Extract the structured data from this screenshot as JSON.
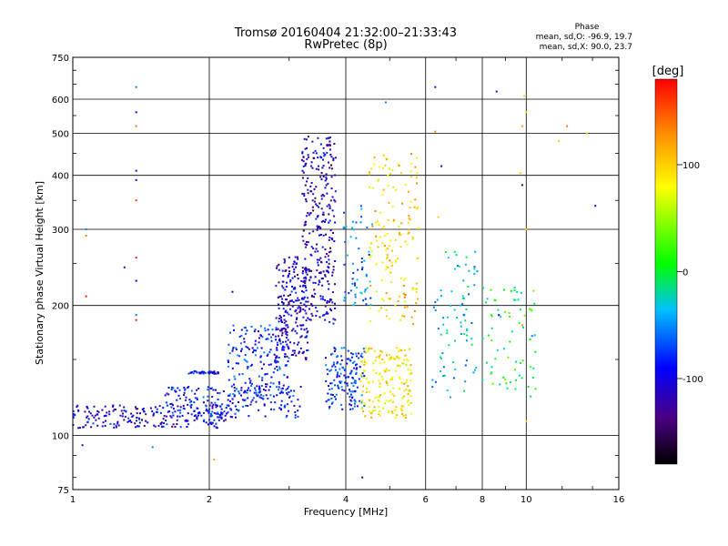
{
  "chart_data": {
    "type": "scatter",
    "title": "Tromsø 20160404 21:32:00–21:33:43",
    "subtitle": "RwPretec (8p)",
    "xlabel": "Frequency [MHz]",
    "ylabel": "Stationary phase Virtual Height [km]",
    "x_scale": "log",
    "y_scale": "log",
    "xlim": [
      1,
      16
    ],
    "ylim": [
      75,
      750
    ],
    "grid": true,
    "x_ticks": [
      1,
      2,
      4,
      6,
      8,
      10,
      16
    ],
    "y_ticks": [
      75,
      100,
      200,
      300,
      400,
      500,
      600,
      750
    ],
    "phase_info": {
      "title": "Phase",
      "line_o": "mean, sd,O:  -96.9, 19.7",
      "line_x": "mean, sd,X:  90.0, 23.7"
    },
    "colorbar": {
      "label": "[deg]",
      "range": [
        -180,
        180
      ],
      "ticks": [
        100,
        0,
        -100
      ],
      "colors": [
        "#000000",
        "#4b0082",
        "#0000ff",
        "#00bfff",
        "#00ff00",
        "#ffff00",
        "#ff8c00",
        "#ff0000"
      ]
    },
    "clusters": [
      {
        "name": "low-o-trace",
        "x": [
          1.0,
          2.2
        ],
        "y": [
          104,
          118
        ],
        "phase": -110,
        "n": 220
      },
      {
        "name": "low-o-trace-2",
        "x": [
          1.6,
          3.2
        ],
        "y": [
          110,
          130
        ],
        "phase": -95,
        "n": 200
      },
      {
        "name": "ledge-140",
        "x": [
          1.8,
          2.1
        ],
        "y": [
          139,
          141
        ],
        "phase": -100,
        "n": 40
      },
      {
        "name": "rise-mid",
        "x": [
          2.2,
          3.0
        ],
        "y": [
          120,
          180
        ],
        "phase": -90,
        "n": 180
      },
      {
        "name": "column-f1",
        "x": [
          2.8,
          3.3
        ],
        "y": [
          150,
          260
        ],
        "phase": -115,
        "n": 220
      },
      {
        "name": "column-f2",
        "x": [
          3.2,
          3.8
        ],
        "y": [
          180,
          500
        ],
        "phase": -120,
        "n": 300
      },
      {
        "name": "x-mode-near-4",
        "x": [
          3.6,
          4.4
        ],
        "y": [
          115,
          160
        ],
        "phase": -85,
        "n": 150
      },
      {
        "name": "f2-spread",
        "x": [
          3.9,
          4.6
        ],
        "y": [
          200,
          340
        ],
        "phase": -60,
        "n": 60
      },
      {
        "name": "x-mode-yellow",
        "x": [
          4.3,
          5.6
        ],
        "y": [
          110,
          160
        ],
        "phase": 90,
        "n": 180
      },
      {
        "name": "x-mode-yellow-high",
        "x": [
          4.5,
          5.8
        ],
        "y": [
          180,
          450
        ],
        "phase": 100,
        "n": 160
      },
      {
        "name": "scatter-6-8",
        "x": [
          6.2,
          7.8
        ],
        "y": [
          120,
          270
        ],
        "phase": -40,
        "n": 80
      },
      {
        "name": "scatter-8-10",
        "x": [
          8.0,
          10.5
        ],
        "y": [
          120,
          220
        ],
        "phase": 0,
        "n": 70
      }
    ],
    "isolated_points": [
      {
        "x": 1.38,
        "y": 640,
        "phase": -60
      },
      {
        "x": 1.38,
        "y": 560,
        "phase": -100
      },
      {
        "x": 1.38,
        "y": 520,
        "phase": 140
      },
      {
        "x": 1.38,
        "y": 410,
        "phase": -110
      },
      {
        "x": 1.38,
        "y": 390,
        "phase": -110
      },
      {
        "x": 1.38,
        "y": 350,
        "phase": 160
      },
      {
        "x": 1.38,
        "y": 258,
        "phase": 170
      },
      {
        "x": 1.38,
        "y": 228,
        "phase": -100
      },
      {
        "x": 1.38,
        "y": 190,
        "phase": -60
      },
      {
        "x": 1.38,
        "y": 185,
        "phase": 170
      },
      {
        "x": 1.07,
        "y": 300,
        "phase": -60
      },
      {
        "x": 1.07,
        "y": 290,
        "phase": 130
      },
      {
        "x": 1.07,
        "y": 210,
        "phase": 170
      },
      {
        "x": 1.3,
        "y": 245,
        "phase": -140
      },
      {
        "x": 1.05,
        "y": 95,
        "phase": -110
      },
      {
        "x": 1.5,
        "y": 94,
        "phase": -60
      },
      {
        "x": 2.05,
        "y": 88,
        "phase": 120
      },
      {
        "x": 2.25,
        "y": 215,
        "phase": -100
      },
      {
        "x": 4.35,
        "y": 80,
        "phase": -150
      },
      {
        "x": 4.9,
        "y": 590,
        "phase": -60
      },
      {
        "x": 6.3,
        "y": 640,
        "phase": -110
      },
      {
        "x": 8.6,
        "y": 625,
        "phase": -110
      },
      {
        "x": 6.3,
        "y": 505,
        "phase": 130
      },
      {
        "x": 9.9,
        "y": 610,
        "phase": 100
      },
      {
        "x": 10.0,
        "y": 560,
        "phase": 100
      },
      {
        "x": 9.8,
        "y": 520,
        "phase": 130
      },
      {
        "x": 12.3,
        "y": 520,
        "phase": 140
      },
      {
        "x": 11.8,
        "y": 480,
        "phase": 100
      },
      {
        "x": 13.6,
        "y": 500,
        "phase": 100
      },
      {
        "x": 9.8,
        "y": 380,
        "phase": -150
      },
      {
        "x": 9.7,
        "y": 405,
        "phase": 100
      },
      {
        "x": 14.2,
        "y": 340,
        "phase": -110
      },
      {
        "x": 10.0,
        "y": 300,
        "phase": 100
      },
      {
        "x": 6.5,
        "y": 420,
        "phase": -100
      },
      {
        "x": 6.4,
        "y": 320,
        "phase": 100
      },
      {
        "x": 10.0,
        "y": 108,
        "phase": 100
      },
      {
        "x": 8.7,
        "y": 190,
        "phase": -100
      },
      {
        "x": 9.8,
        "y": 180,
        "phase": 130
      },
      {
        "x": 10.3,
        "y": 170,
        "phase": -60
      }
    ]
  }
}
